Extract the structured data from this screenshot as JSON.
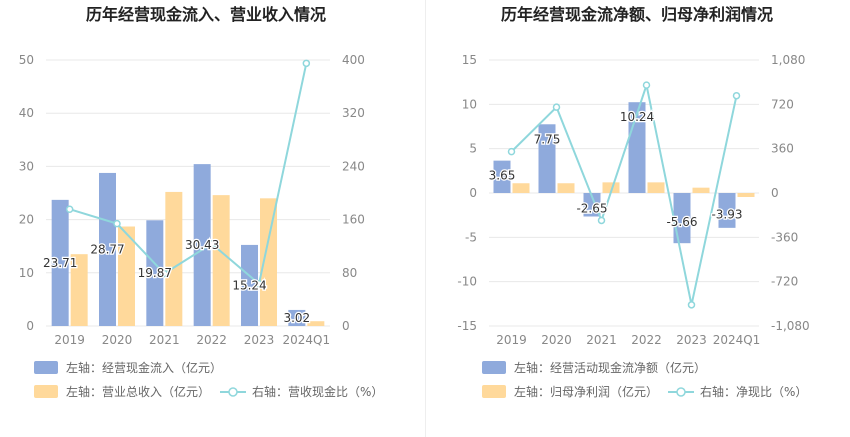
{
  "colors": {
    "bar_blue": "#8faadc",
    "bar_orange": "#ffd99b",
    "line_cyan": "#8fd7dc",
    "grid": "#e8e8e8",
    "axis_text": "#888888",
    "title": "#222222",
    "legend_text": "#666666",
    "label_text": "#333333"
  },
  "chart_data": [
    {
      "type": "bar",
      "title": "历年经营现金流入、营业收入情况",
      "categories": [
        "2019",
        "2020",
        "2021",
        "2022",
        "2023",
        "2024Q1"
      ],
      "y_left_ticks": [
        "0",
        "10",
        "20",
        "30",
        "40",
        "50"
      ],
      "y_right_ticks": [
        "0",
        "80",
        "160",
        "240",
        "320",
        "400"
      ],
      "ylim_left": [
        0,
        50
      ],
      "ylim_right": [
        0,
        400
      ],
      "grid": true,
      "legend_position": "bottom",
      "series": [
        {
          "name": "左轴：经营现金流入（亿元）",
          "kind": "bar",
          "axis": "left",
          "color": "#8faadc",
          "values": [
            23.71,
            28.77,
            19.87,
            30.43,
            15.24,
            3.02
          ],
          "labels": [
            "23.71",
            "28.77",
            "19.87",
            "30.43",
            "15.24",
            "3.02"
          ]
        },
        {
          "name": "左轴：营业总收入（亿元）",
          "kind": "bar",
          "axis": "left",
          "color": "#ffd99b",
          "values": [
            13.5,
            18.7,
            25.2,
            24.6,
            24.0,
            0.9
          ]
        },
        {
          "name": "右轴：营收现金比（%）",
          "kind": "line",
          "axis": "right",
          "color": "#8fd7dc",
          "values": [
            175.6,
            153.9,
            78.9,
            123.7,
            63.5,
            395.0
          ]
        }
      ]
    },
    {
      "type": "bar",
      "title": "历年经营现金流净额、归母净利润情况",
      "categories": [
        "2019",
        "2020",
        "2021",
        "2022",
        "2023",
        "2024Q1"
      ],
      "y_left_ticks": [
        "15",
        "10",
        "5",
        "0",
        "-5",
        "-10",
        "-15"
      ],
      "y_right_ticks": [
        "1,080",
        "720",
        "360",
        "0",
        "-360",
        "-720",
        "-1,080"
      ],
      "ylim_left": [
        -15,
        15
      ],
      "ylim_right": [
        -1080,
        1080
      ],
      "grid": true,
      "legend_position": "bottom",
      "series": [
        {
          "name": "左轴：经营活动现金流净额（亿元）",
          "kind": "bar",
          "axis": "left",
          "color": "#8faadc",
          "values": [
            3.65,
            7.75,
            -2.65,
            10.24,
            -5.66,
            -3.93
          ],
          "labels": [
            "3.65",
            "7.75",
            "-2.65",
            "10.24",
            "-5.66",
            "-3.93"
          ]
        },
        {
          "name": "左轴：归母净利润（亿元）",
          "kind": "bar",
          "axis": "left",
          "color": "#ffd99b",
          "values": [
            1.1,
            1.1,
            1.2,
            1.2,
            0.6,
            -0.45
          ]
        },
        {
          "name": "右轴：净现比（%）",
          "kind": "line",
          "axis": "right",
          "color": "#8fd7dc",
          "values": [
            336,
            697,
            -223,
            876,
            -908,
            790
          ]
        }
      ]
    }
  ]
}
